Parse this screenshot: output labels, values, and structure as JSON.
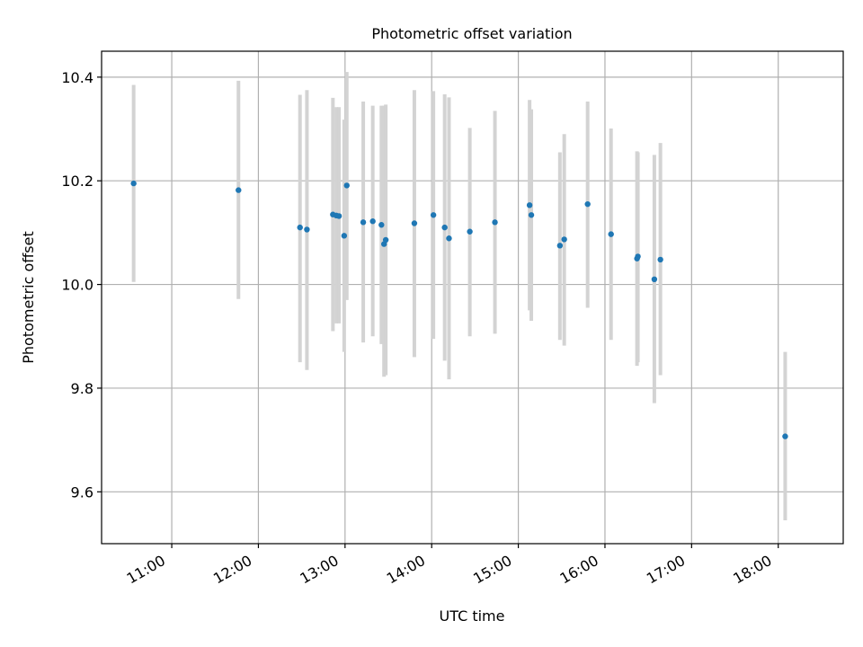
{
  "chart_data": {
    "type": "scatter",
    "title": "Photometric offset variation",
    "xlabel": "UTC time",
    "ylabel": "Photometric offset",
    "x_unit": "hours (UTC, decimal)",
    "xlim": [
      10.19,
      18.75
    ],
    "ylim": [
      9.5,
      10.45
    ],
    "x_ticks": [
      {
        "value": 11,
        "label": "11:00"
      },
      {
        "value": 12,
        "label": "12:00"
      },
      {
        "value": 13,
        "label": "13:00"
      },
      {
        "value": 14,
        "label": "14:00"
      },
      {
        "value": 15,
        "label": "15:00"
      },
      {
        "value": 16,
        "label": "16:00"
      },
      {
        "value": 17,
        "label": "17:00"
      },
      {
        "value": 18,
        "label": "18:00"
      }
    ],
    "y_ticks": [
      {
        "value": 9.6,
        "label": "9.6"
      },
      {
        "value": 9.8,
        "label": "9.8"
      },
      {
        "value": 10.0,
        "label": "10.0"
      },
      {
        "value": 10.2,
        "label": "10.2"
      },
      {
        "value": 10.4,
        "label": "10.4"
      }
    ],
    "grid": true,
    "point_color": "#1f77b4",
    "errorbar_color": "#d3d3d3",
    "points": [
      {
        "x": 10.56,
        "y": 10.195,
        "lo": 10.005,
        "hi": 10.385
      },
      {
        "x": 11.77,
        "y": 10.182,
        "lo": 9.972,
        "hi": 10.393
      },
      {
        "x": 12.48,
        "y": 10.11,
        "lo": 9.85,
        "hi": 10.366
      },
      {
        "x": 12.56,
        "y": 10.106,
        "lo": 9.835,
        "hi": 10.375
      },
      {
        "x": 12.86,
        "y": 10.135,
        "lo": 9.91,
        "hi": 10.36
      },
      {
        "x": 12.9,
        "y": 10.133,
        "lo": 9.925,
        "hi": 10.342
      },
      {
        "x": 12.93,
        "y": 10.132,
        "lo": 9.925,
        "hi": 10.342
      },
      {
        "x": 12.99,
        "y": 10.094,
        "lo": 9.87,
        "hi": 10.318
      },
      {
        "x": 13.02,
        "y": 10.191,
        "lo": 9.97,
        "hi": 10.41
      },
      {
        "x": 13.21,
        "y": 10.12,
        "lo": 9.888,
        "hi": 10.353
      },
      {
        "x": 13.32,
        "y": 10.122,
        "lo": 9.9,
        "hi": 10.345
      },
      {
        "x": 13.42,
        "y": 10.115,
        "lo": 9.885,
        "hi": 10.345
      },
      {
        "x": 13.45,
        "y": 10.078,
        "lo": 9.822,
        "hi": 10.345
      },
      {
        "x": 13.47,
        "y": 10.086,
        "lo": 9.825,
        "hi": 10.347
      },
      {
        "x": 13.8,
        "y": 10.118,
        "lo": 9.86,
        "hi": 10.375
      },
      {
        "x": 14.02,
        "y": 10.134,
        "lo": 9.895,
        "hi": 10.373
      },
      {
        "x": 14.15,
        "y": 10.11,
        "lo": 9.853,
        "hi": 10.367
      },
      {
        "x": 14.2,
        "y": 10.089,
        "lo": 9.817,
        "hi": 10.361
      },
      {
        "x": 14.44,
        "y": 10.102,
        "lo": 9.9,
        "hi": 10.302
      },
      {
        "x": 14.73,
        "y": 10.12,
        "lo": 9.905,
        "hi": 10.335
      },
      {
        "x": 15.13,
        "y": 10.153,
        "lo": 9.95,
        "hi": 10.356
      },
      {
        "x": 15.15,
        "y": 10.134,
        "lo": 9.93,
        "hi": 10.338
      },
      {
        "x": 15.48,
        "y": 10.075,
        "lo": 9.893,
        "hi": 10.255
      },
      {
        "x": 15.53,
        "y": 10.087,
        "lo": 9.882,
        "hi": 10.29
      },
      {
        "x": 15.8,
        "y": 10.155,
        "lo": 9.955,
        "hi": 10.353
      },
      {
        "x": 16.07,
        "y": 10.097,
        "lo": 9.893,
        "hi": 10.301
      },
      {
        "x": 16.37,
        "y": 10.05,
        "lo": 9.843,
        "hi": 10.257
      },
      {
        "x": 16.38,
        "y": 10.054,
        "lo": 9.85,
        "hi": 10.255
      },
      {
        "x": 16.57,
        "y": 10.01,
        "lo": 9.771,
        "hi": 10.25
      },
      {
        "x": 16.64,
        "y": 10.048,
        "lo": 9.825,
        "hi": 10.273
      },
      {
        "x": 18.08,
        "y": 9.707,
        "lo": 9.545,
        "hi": 9.87
      }
    ]
  }
}
